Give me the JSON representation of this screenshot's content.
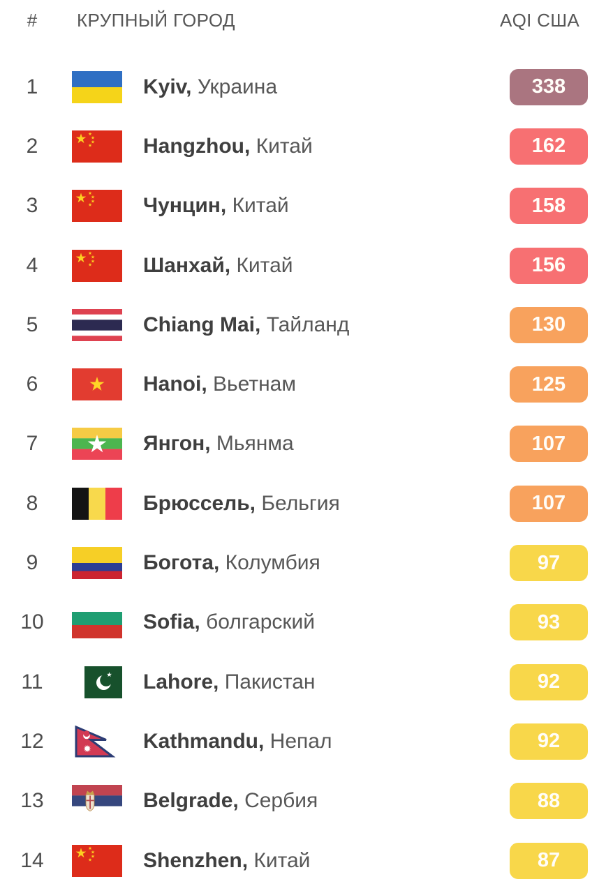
{
  "header": {
    "rank": "#",
    "city": "КРУПНЫЙ ГОРОД",
    "aqi": "AQI США"
  },
  "ui": {
    "separator": ", "
  },
  "aqi_colors": {
    "hazardous": "#aa7580",
    "unhealthy": "#f77072",
    "unhealthy_sensitive": "#f8a25d",
    "moderate": "#f8d74a"
  },
  "rows": [
    {
      "rank": "1",
      "city": "Kyiv",
      "country": "Украина",
      "flag": "ukraine",
      "aqi": "338",
      "level": "hazardous"
    },
    {
      "rank": "2",
      "city": "Hangzhou",
      "country": "Китай",
      "flag": "china",
      "aqi": "162",
      "level": "unhealthy"
    },
    {
      "rank": "3",
      "city": "Чунцин",
      "country": "Китай",
      "flag": "china",
      "aqi": "158",
      "level": "unhealthy"
    },
    {
      "rank": "4",
      "city": "Шанхай",
      "country": "Китай",
      "flag": "china",
      "aqi": "156",
      "level": "unhealthy"
    },
    {
      "rank": "5",
      "city": "Chiang Mai",
      "country": "Тайланд",
      "flag": "thailand",
      "aqi": "130",
      "level": "unhealthy_sensitive"
    },
    {
      "rank": "6",
      "city": "Hanoi",
      "country": "Вьетнам",
      "flag": "vietnam",
      "aqi": "125",
      "level": "unhealthy_sensitive"
    },
    {
      "rank": "7",
      "city": "Янгон",
      "country": "Мьянма",
      "flag": "myanmar",
      "aqi": "107",
      "level": "unhealthy_sensitive"
    },
    {
      "rank": "8",
      "city": "Брюссель",
      "country": "Бельгия",
      "flag": "belgium",
      "aqi": "107",
      "level": "unhealthy_sensitive"
    },
    {
      "rank": "9",
      "city": "Богота",
      "country": "Колумбия",
      "flag": "colombia",
      "aqi": "97",
      "level": "moderate"
    },
    {
      "rank": "10",
      "city": "Sofia",
      "country": "болгарский",
      "flag": "bulgaria",
      "aqi": "93",
      "level": "moderate"
    },
    {
      "rank": "11",
      "city": "Lahore",
      "country": "Пакистан",
      "flag": "pakistan",
      "aqi": "92",
      "level": "moderate"
    },
    {
      "rank": "12",
      "city": "Kathmandu",
      "country": "Непал",
      "flag": "nepal",
      "aqi": "92",
      "level": "moderate"
    },
    {
      "rank": "13",
      "city": "Belgrade",
      "country": "Сербия",
      "flag": "serbia",
      "aqi": "88",
      "level": "moderate"
    },
    {
      "rank": "14",
      "city": "Shenzhen",
      "country": "Китай",
      "flag": "china",
      "aqi": "87",
      "level": "moderate"
    }
  ]
}
